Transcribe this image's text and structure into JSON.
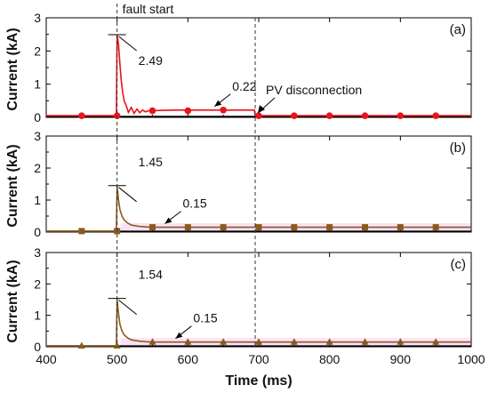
{
  "chart_data": {
    "type": "line",
    "xlabel": "Time (ms)",
    "x_ticks": [
      400,
      500,
      600,
      700,
      800,
      900,
      1000
    ],
    "xlim": [
      400,
      1000
    ],
    "ylabel": "Current (kA)",
    "ylim": [
      0,
      3
    ],
    "y_ticks": [
      0,
      1,
      2,
      3
    ],
    "fault_start": {
      "x": 500,
      "label": "fault start"
    },
    "pv_disconnection": {
      "x": 695,
      "label": "PV disconnection"
    },
    "panels": [
      {
        "tag": "(a)",
        "color": "#e8141c",
        "marker": "circle",
        "marker_x": [
          450,
          500,
          550,
          600,
          650,
          700,
          750,
          800,
          850,
          900,
          950
        ],
        "series": [
          {
            "x": [
              400,
              499,
              500,
              502,
              504,
              506,
              508,
              510,
              513,
              516,
              520,
              524,
              528,
              532,
              536,
              540,
              545,
              550,
              560,
              580,
              600,
              650,
              690,
              694,
              695,
              696,
              700,
              800,
              900,
              1000
            ],
            "y": [
              0.05,
              0.05,
              2.49,
              2.2,
              1.6,
              1.1,
              0.75,
              0.5,
              0.35,
              0.15,
              0.3,
              0.12,
              0.25,
              0.14,
              0.22,
              0.17,
              0.2,
              0.2,
              0.21,
              0.22,
              0.22,
              0.22,
              0.22,
              0.22,
              0.05,
              0.05,
              0.05,
              0.05,
              0.05,
              0.05
            ]
          }
        ],
        "markers_y": [
          0.05,
          0.05,
          0.2,
          0.2,
          0.22,
          0.05,
          0.05,
          0.05,
          0.05,
          0.05,
          0.05
        ],
        "annotations": [
          {
            "text": "2.49",
            "x": 500,
            "y": 2.49
          },
          {
            "text": "0.22",
            "x": 630,
            "y": 0.22
          }
        ]
      },
      {
        "tag": "(b)",
        "color": "#8a5a1e",
        "band_color": "#f7c8f3",
        "marker": "square",
        "marker_x": [
          450,
          500,
          550,
          600,
          650,
          700,
          750,
          800,
          850,
          900,
          950
        ],
        "series": [
          {
            "x": [
              400,
              499,
              500,
              502,
              504,
              507,
              510,
              515,
              520,
              530,
              540,
              550,
              1000
            ],
            "y": [
              0.03,
              0.03,
              1.45,
              1.0,
              0.7,
              0.5,
              0.38,
              0.28,
              0.22,
              0.18,
              0.16,
              0.15,
              0.15
            ]
          }
        ],
        "markers_y": [
          0.03,
          0.03,
          0.15,
          0.15,
          0.15,
          0.15,
          0.15,
          0.15,
          0.15,
          0.15,
          0.15
        ],
        "annotations": [
          {
            "text": "1.45",
            "x": 500,
            "y": 1.45
          },
          {
            "text": "0.15",
            "x": 560,
            "y": 0.15
          }
        ]
      },
      {
        "tag": "(c)",
        "color": "#8a5a1e",
        "band_color": "#f7c8f3",
        "marker": "triangle",
        "marker_x": [
          450,
          500,
          550,
          600,
          650,
          700,
          750,
          800,
          850,
          900,
          950
        ],
        "series": [
          {
            "x": [
              400,
              499,
              500,
              502,
              504,
              507,
              510,
              515,
              520,
              530,
              540,
              550,
              1000
            ],
            "y": [
              0.03,
              0.03,
              1.54,
              1.05,
              0.72,
              0.5,
              0.38,
              0.28,
              0.22,
              0.18,
              0.16,
              0.15,
              0.15
            ]
          }
        ],
        "markers_y": [
          0.03,
          0.03,
          0.15,
          0.15,
          0.15,
          0.15,
          0.15,
          0.15,
          0.15,
          0.15,
          0.15
        ],
        "annotations": [
          {
            "text": "1.54",
            "x": 500,
            "y": 1.54
          },
          {
            "text": "0.15",
            "x": 575,
            "y": 0.15
          }
        ]
      }
    ]
  }
}
